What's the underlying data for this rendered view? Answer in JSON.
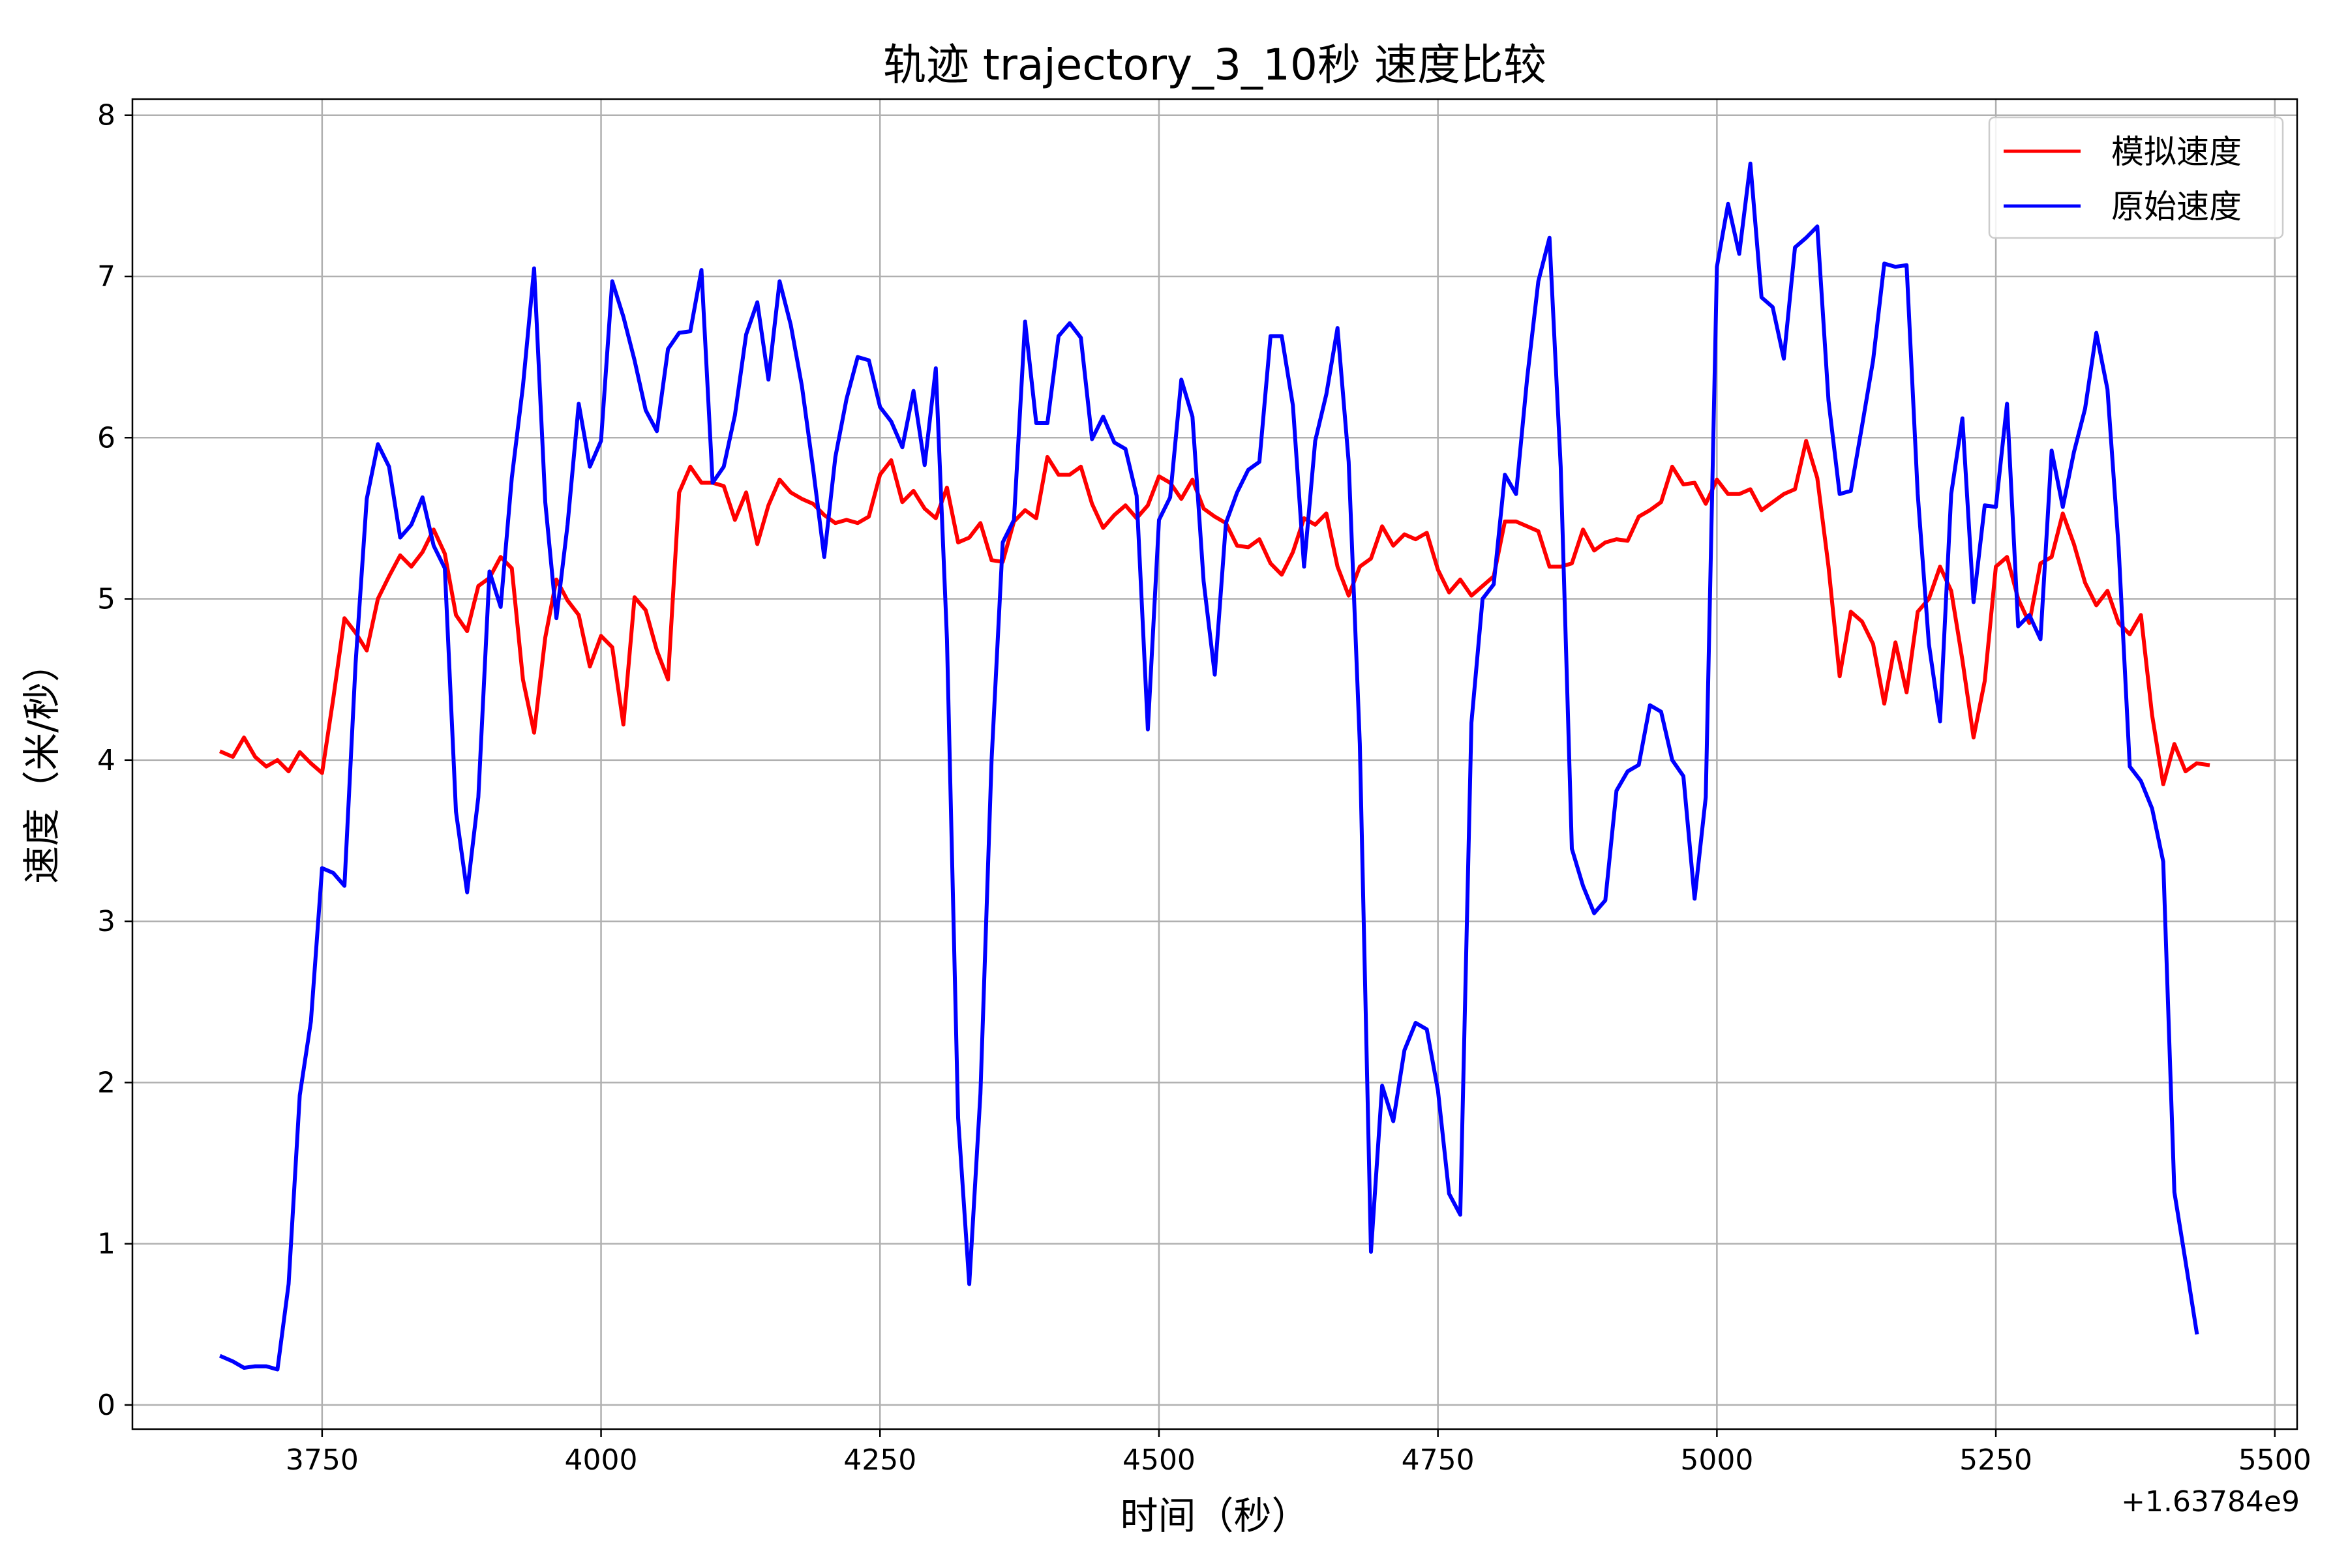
{
  "chart_data": {
    "type": "line",
    "title": "轨迹 trajectory_3_10秒 速度比较",
    "xlabel": "时间（秒）",
    "ylabel": "速度（米/秒）",
    "x_offset_label": "+1.63784e9",
    "xlim": [
      3580,
      5520
    ],
    "ylim": [
      -0.15,
      8.1
    ],
    "grid": true,
    "legend_position": "upper right",
    "xticks": [
      3750,
      4000,
      4250,
      4500,
      4750,
      5000,
      5250,
      5500
    ],
    "yticks": [
      0,
      1,
      2,
      3,
      4,
      5,
      6,
      7,
      8
    ],
    "x_start": 3660,
    "x_step": 10,
    "series": [
      {
        "name": "模拟速度",
        "color": "#ff0000",
        "values": [
          4.05,
          4.02,
          4.14,
          4.02,
          3.96,
          4.0,
          3.93,
          4.05,
          3.98,
          3.92,
          4.38,
          4.88,
          4.79,
          4.68,
          5.0,
          5.14,
          5.27,
          5.2,
          5.29,
          5.43,
          5.28,
          4.9,
          4.8,
          5.08,
          5.13,
          5.26,
          5.19,
          4.5,
          4.17,
          4.76,
          5.12,
          4.99,
          4.9,
          4.58,
          4.77,
          4.7,
          4.22,
          5.01,
          4.93,
          4.68,
          4.5,
          5.66,
          5.82,
          5.72,
          5.72,
          5.7,
          5.49,
          5.66,
          5.34,
          5.58,
          5.74,
          5.66,
          5.62,
          5.59,
          5.52,
          5.47,
          5.49,
          5.47,
          5.51,
          5.77,
          5.86,
          5.6,
          5.67,
          5.56,
          5.5,
          5.69,
          5.35,
          5.38,
          5.47,
          5.24,
          5.23,
          5.48,
          5.55,
          5.5,
          5.88,
          5.77,
          5.77,
          5.82,
          5.59,
          5.44,
          5.52,
          5.58,
          5.5,
          5.58,
          5.76,
          5.72,
          5.62,
          5.74,
          5.56,
          5.51,
          5.47,
          5.33,
          5.32,
          5.37,
          5.22,
          5.15,
          5.29,
          5.5,
          5.46,
          5.53,
          5.2,
          5.02,
          5.2,
          5.25,
          5.45,
          5.33,
          5.4,
          5.37,
          5.41,
          5.18,
          5.04,
          5.12,
          5.02,
          5.08,
          5.14,
          5.48,
          5.48,
          5.45,
          5.42,
          5.2,
          5.2,
          5.22,
          5.43,
          5.3,
          5.35,
          5.37,
          5.36,
          5.51,
          5.55,
          5.6,
          5.82,
          5.71,
          5.72,
          5.59,
          5.74,
          5.65,
          5.65,
          5.68,
          5.55,
          5.6,
          5.65,
          5.68,
          5.98,
          5.75,
          5.2,
          4.52,
          4.92,
          4.86,
          4.72,
          4.35,
          4.73,
          4.42,
          4.92,
          5.0,
          5.2,
          5.05,
          4.62,
          4.14,
          4.49,
          5.2,
          5.26,
          5.0,
          4.85,
          5.22,
          5.26,
          5.53,
          5.34,
          5.1,
          4.96,
          5.05,
          4.85,
          4.78,
          4.9,
          4.28,
          3.85,
          4.1,
          3.93,
          3.98,
          3.97
        ]
      },
      {
        "name": "原始速度",
        "color": "#0000ff",
        "values": [
          0.3,
          0.27,
          0.23,
          0.24,
          0.24,
          0.22,
          0.75,
          1.92,
          2.38,
          3.33,
          3.3,
          3.22,
          4.6,
          5.62,
          5.96,
          5.82,
          5.38,
          5.46,
          5.63,
          5.33,
          5.19,
          3.68,
          3.18,
          3.77,
          5.17,
          4.95,
          5.75,
          6.32,
          7.05,
          5.6,
          4.88,
          5.46,
          6.21,
          5.82,
          5.98,
          6.97,
          6.75,
          6.48,
          6.17,
          6.04,
          6.55,
          6.65,
          6.66,
          7.04,
          5.72,
          5.82,
          6.14,
          6.64,
          6.84,
          6.36,
          6.97,
          6.7,
          6.32,
          5.81,
          5.26,
          5.88,
          6.24,
          6.5,
          6.48,
          6.19,
          6.1,
          5.94,
          6.29,
          5.83,
          6.43,
          4.75,
          1.78,
          0.75,
          1.93,
          4.0,
          5.35,
          5.49,
          6.72,
          6.09,
          6.09,
          6.63,
          6.71,
          6.62,
          5.99,
          6.13,
          5.97,
          5.93,
          5.64,
          4.19,
          5.49,
          5.63,
          6.36,
          6.13,
          5.11,
          4.53,
          5.47,
          5.66,
          5.8,
          5.85,
          6.63,
          6.63,
          6.2,
          5.2,
          5.98,
          6.27,
          6.68,
          5.85,
          4.1,
          0.95,
          1.98,
          1.76,
          2.2,
          2.37,
          2.33,
          1.95,
          1.31,
          1.18,
          4.23,
          5.0,
          5.09,
          5.77,
          5.65,
          6.37,
          6.97,
          7.24,
          5.82,
          3.45,
          3.22,
          3.05,
          3.13,
          3.81,
          3.93,
          3.97,
          4.34,
          4.3,
          4.0,
          3.9,
          3.14,
          3.77,
          7.06,
          7.45,
          7.14,
          7.7,
          6.87,
          6.81,
          6.49,
          7.18,
          7.24,
          7.31,
          6.23,
          5.65,
          5.67,
          6.07,
          6.48,
          7.08,
          7.06,
          7.07,
          5.65,
          4.72,
          4.24,
          5.65,
          6.12,
          4.98,
          5.58,
          5.57,
          6.21,
          4.83,
          4.9,
          4.75,
          5.92,
          5.57,
          5.91,
          6.18,
          6.65,
          6.3,
          5.32,
          3.96,
          3.87,
          3.7,
          3.37,
          1.32,
          0.89,
          0.45
        ]
      }
    ]
  }
}
